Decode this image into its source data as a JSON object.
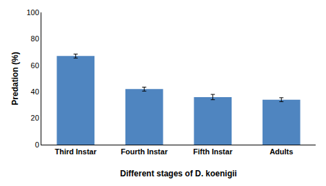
{
  "chart_data": {
    "type": "bar",
    "categories": [
      "Third Instar",
      "Fourth Instar",
      "Fifth Instar",
      "Adults"
    ],
    "values": [
      67.0,
      42.0,
      36.0,
      34.0
    ],
    "errors": [
      1.5,
      1.5,
      2.0,
      1.5
    ],
    "color": "#4F85C0",
    "ylabel": "Predation (%)",
    "xlabel": "Different stages of D. koenigii",
    "ylim": [
      0,
      100
    ],
    "yticks": [
      0,
      20,
      40,
      60,
      80,
      100
    ],
    "grid": false
  }
}
